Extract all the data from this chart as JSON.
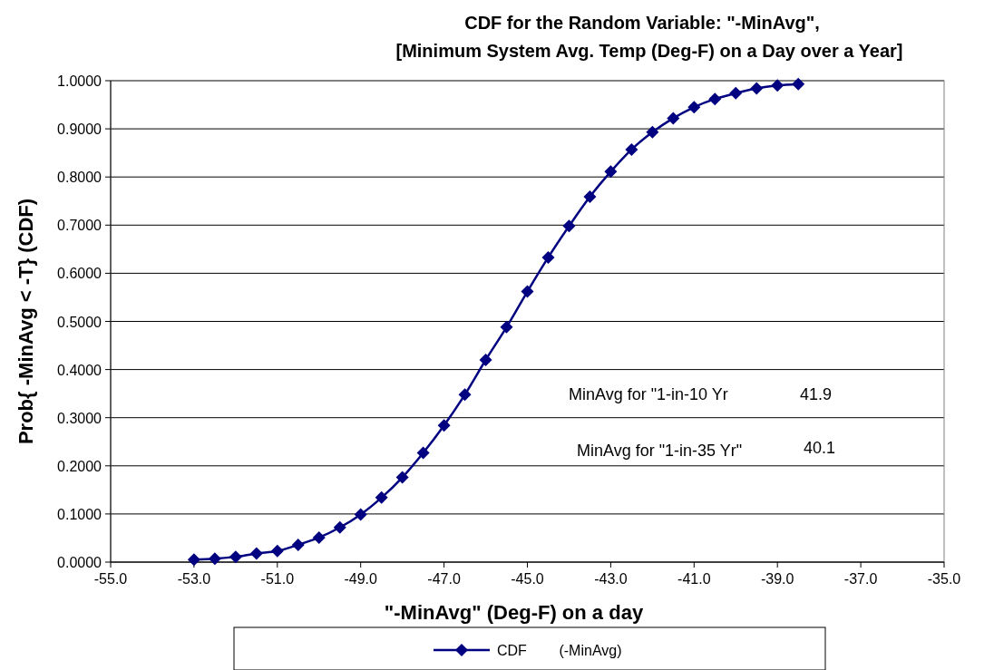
{
  "chart_data": {
    "type": "line",
    "title": "CDF for the Random Variable:  \"-MinAvg\",",
    "subtitle": "[Minimum System Avg. Temp (Deg-F) on a Day over a Year]",
    "xlabel": "\"-MinAvg\" (Deg-F) on a day",
    "ylabel": "Prob{ -MinAvg < -T} (CDF)",
    "x": [
      -53,
      -52.5,
      -52,
      -51.5,
      -51,
      -50.5,
      -50,
      -49.5,
      -49,
      -48.5,
      -48,
      -47.5,
      -47,
      -46.5,
      -46,
      -45.5,
      -45,
      -44.5,
      -44,
      -43.5,
      -43,
      -42.5,
      -42,
      -41.5,
      -41,
      -40.5,
      -40,
      -39.5,
      -39,
      -38.5
    ],
    "series": [
      {
        "name": "CDF        (-MinAvg)",
        "color": "#000080",
        "values": [
          0.005,
          0.007,
          0.011,
          0.018,
          0.023,
          0.036,
          0.051,
          0.072,
          0.099,
          0.134,
          0.176,
          0.227,
          0.284,
          0.348,
          0.42,
          0.488,
          0.562,
          0.633,
          0.698,
          0.759,
          0.811,
          0.857,
          0.893,
          0.922,
          0.945,
          0.962,
          0.974,
          0.984,
          0.99,
          0.993
        ]
      }
    ],
    "xlim": [
      -55,
      -35
    ],
    "xticks": [
      {
        "value": -55,
        "label": "-55.0"
      },
      {
        "value": -53,
        "label": "-53.0"
      },
      {
        "value": -51,
        "label": "-51.0"
      },
      {
        "value": -49,
        "label": "-49.0"
      },
      {
        "value": -47,
        "label": "-47.0"
      },
      {
        "value": -45,
        "label": "-45.0"
      },
      {
        "value": -43,
        "label": "-43.0"
      },
      {
        "value": -41,
        "label": "-41.0"
      },
      {
        "value": -39,
        "label": "-39.0"
      },
      {
        "value": -37,
        "label": "-37.0"
      },
      {
        "value": -35,
        "label": "-35.0"
      }
    ],
    "ylim": [
      0,
      1
    ],
    "yticks": [
      {
        "value": 0,
        "label": "0.0000"
      },
      {
        "value": 0.1,
        "label": "0.1000"
      },
      {
        "value": 0.2,
        "label": "0.2000"
      },
      {
        "value": 0.3,
        "label": "0.3000"
      },
      {
        "value": 0.4,
        "label": "0.4000"
      },
      {
        "value": 0.5,
        "label": "0.5000"
      },
      {
        "value": 0.6,
        "label": "0.6000"
      },
      {
        "value": 0.7,
        "label": "0.7000"
      },
      {
        "value": 0.8,
        "label": "0.8000"
      },
      {
        "value": 0.9,
        "label": "0.9000"
      },
      {
        "value": 1,
        "label": "1.0000"
      }
    ],
    "annotations": [
      "MinAvg for \"1-in-10 Yr",
      "41.9",
      "MinAvg for \"1-in-35 Yr\"",
      "40.1"
    ],
    "grid": "y",
    "legend": "bottom",
    "marker": "diamond",
    "line_style": "solid"
  }
}
